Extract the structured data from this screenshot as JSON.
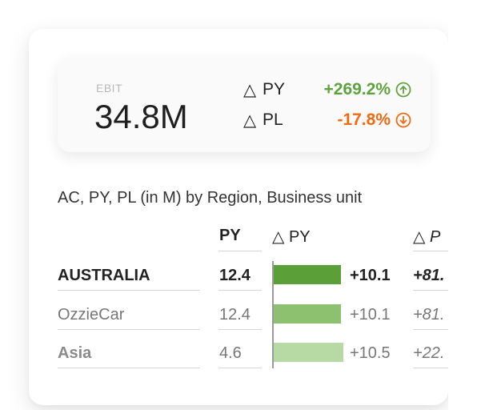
{
  "kpi": {
    "label": "EBIT",
    "value": "34.8M",
    "deltas": [
      {
        "symbol": "△",
        "label": "PY",
        "value": "+269.2%",
        "direction": "up",
        "icon": "arrow-up-circle-icon",
        "color": "#5ea33e"
      },
      {
        "symbol": "△",
        "label": "PL",
        "value": "-17.8%",
        "direction": "down",
        "icon": "arrow-down-circle-icon",
        "color": "#ef6a12"
      }
    ]
  },
  "table": {
    "subtitle": "AC, PY, PL (in M) by Region, Business unit",
    "headers": {
      "py": "PY",
      "delta_py": "△ PY",
      "delta_pl": "△ P"
    },
    "rows": [
      {
        "name": "AUSTRALIA",
        "py": "12.4",
        "delta_py": "+10.1",
        "bar": 10.1,
        "bar_color": "#5a9f38",
        "delta_pl": "+81.",
        "style": "bold"
      },
      {
        "name": "OzzieCar",
        "py": "12.4",
        "delta_py": "+10.1",
        "bar": 10.1,
        "bar_color": "#8dc16f",
        "delta_pl": "+81.",
        "style": "normal"
      },
      {
        "name": "Asia",
        "py": "4.6",
        "delta_py": "+10.5",
        "bar": 10.5,
        "bar_color": "#b7d9a3",
        "delta_pl": "+22.",
        "style": "muted"
      }
    ]
  }
}
